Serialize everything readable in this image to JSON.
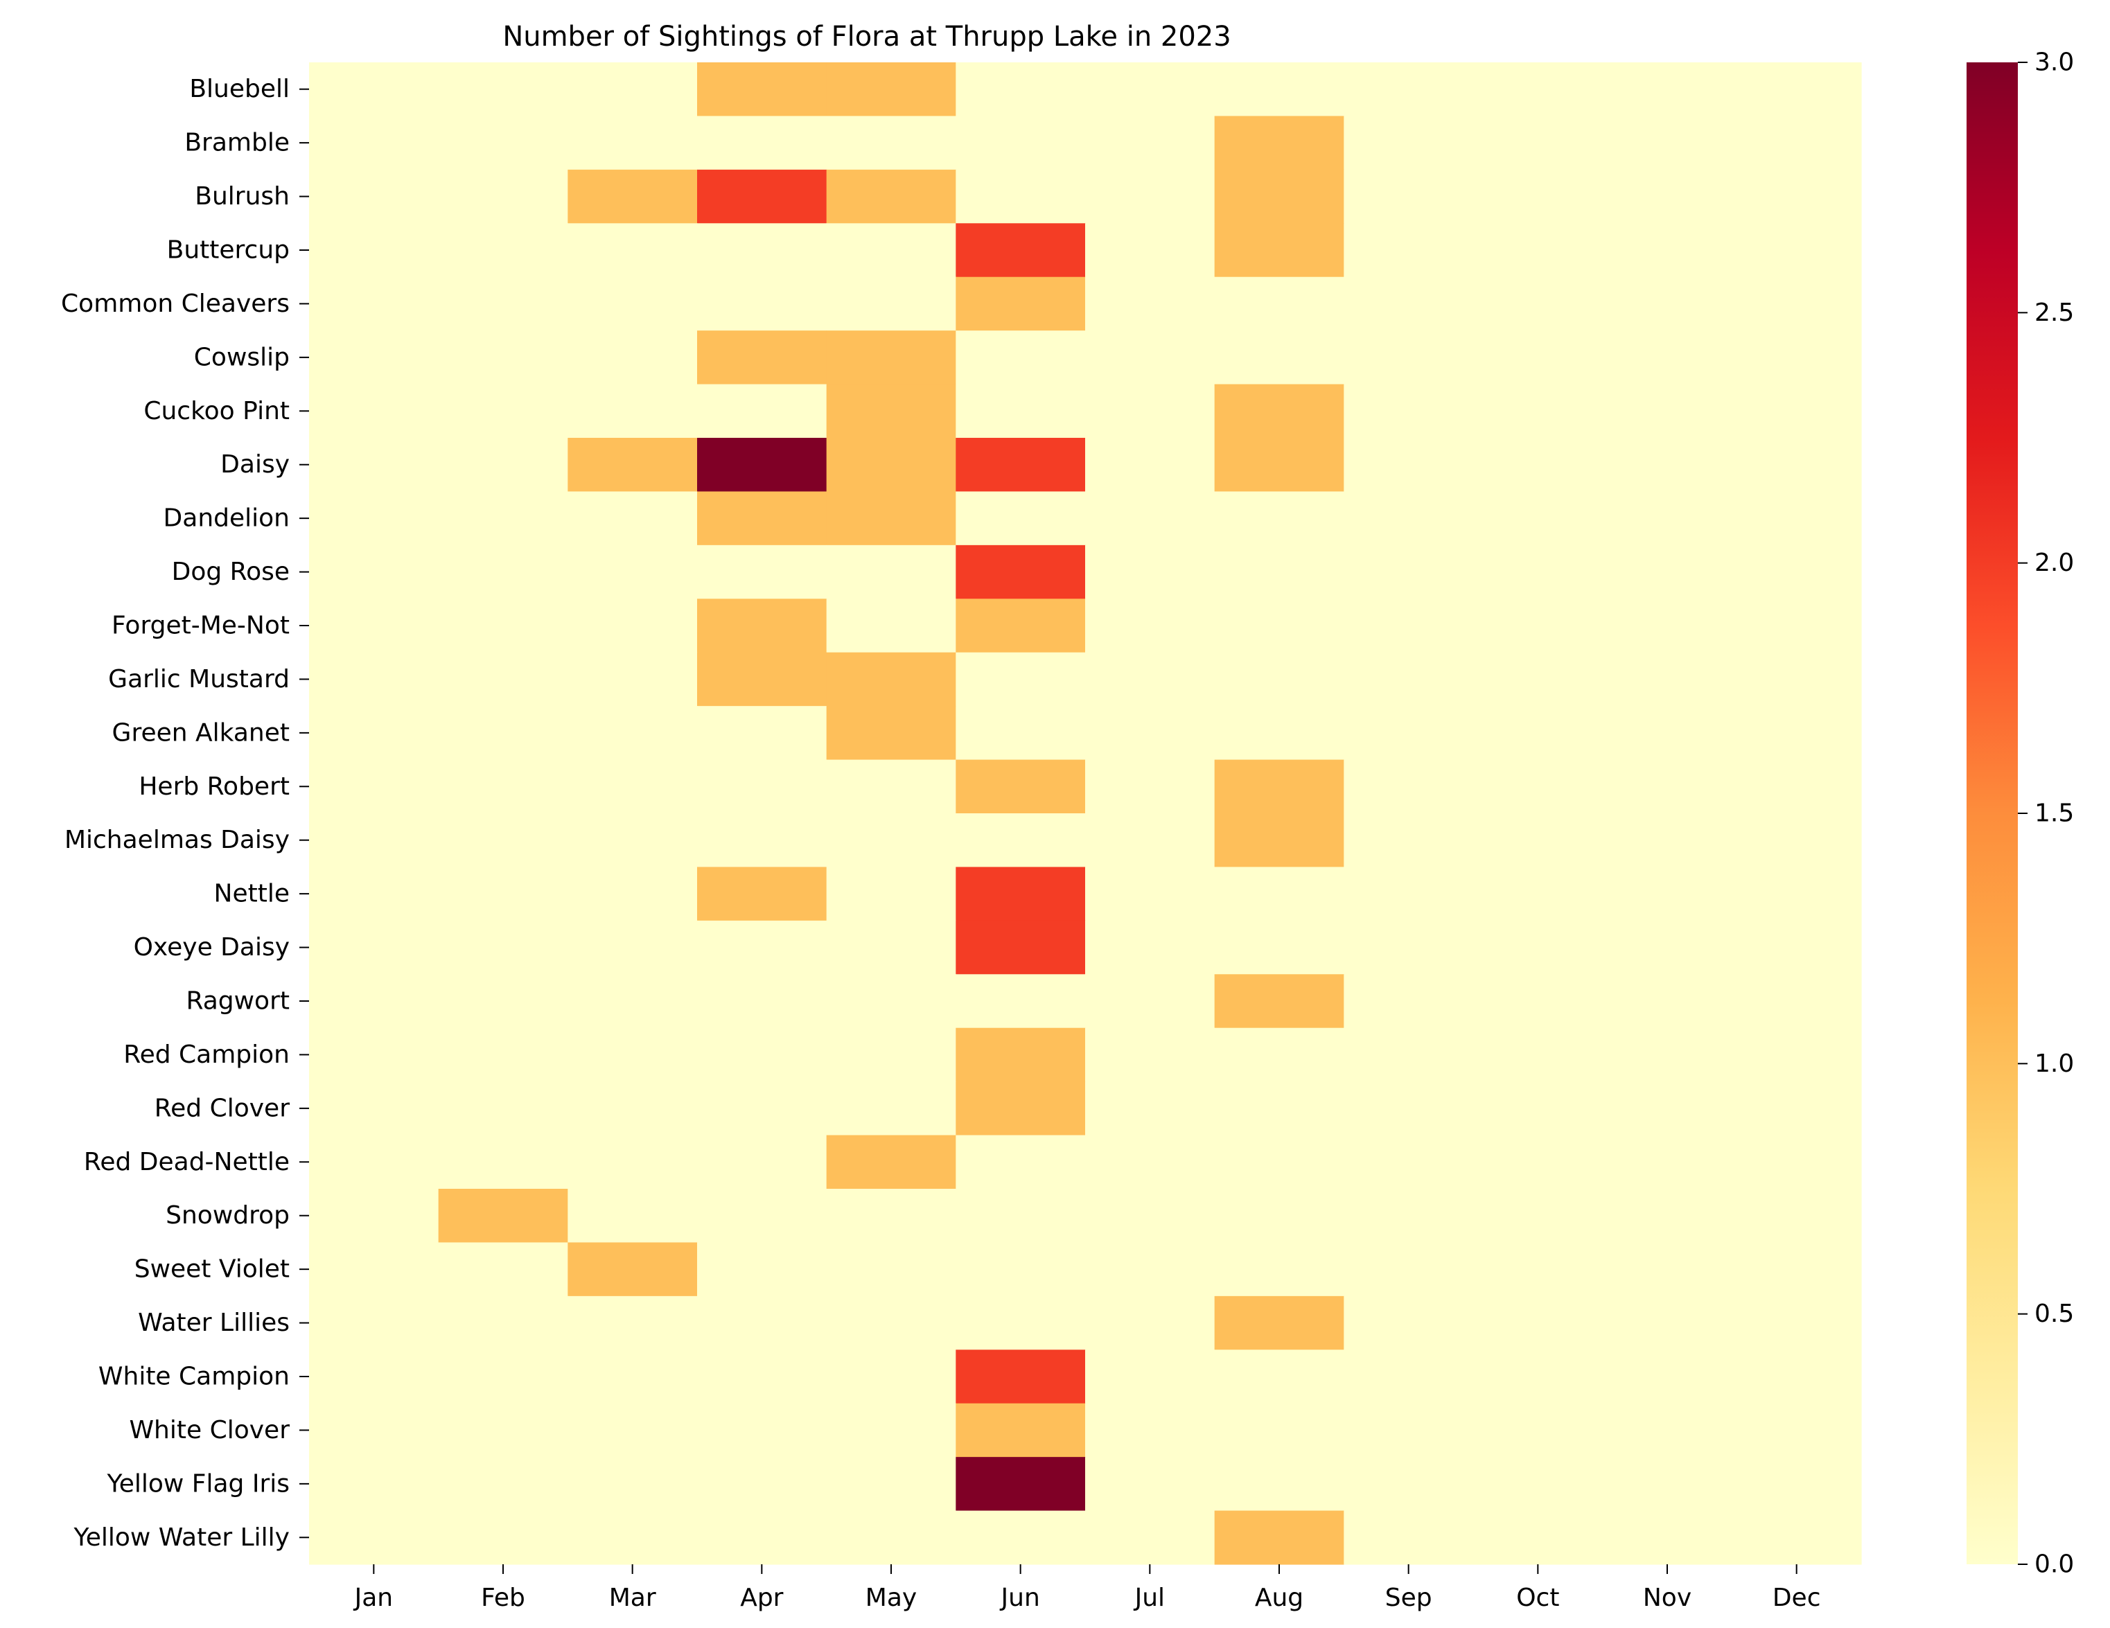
{
  "chart_data": {
    "type": "heatmap",
    "title": "Number of Sightings of Flora at Thrupp Lake in 2023",
    "xlabel": "",
    "ylabel": "",
    "x_categories": [
      "Jan",
      "Feb",
      "Mar",
      "Apr",
      "May",
      "Jun",
      "Jul",
      "Aug",
      "Sep",
      "Oct",
      "Nov",
      "Dec"
    ],
    "y_categories": [
      "Bluebell",
      "Bramble",
      "Bulrush",
      "Buttercup",
      "Common Cleavers",
      "Cowslip",
      "Cuckoo Pint",
      "Daisy",
      "Dandelion",
      "Dog Rose",
      "Forget-Me-Not",
      "Garlic Mustard",
      "Green Alkanet",
      "Herb Robert",
      "Michaelmas Daisy",
      "Nettle",
      "Oxeye Daisy",
      "Ragwort",
      "Red Campion",
      "Red Clover",
      "Red Dead-Nettle",
      "Snowdrop",
      "Sweet Violet",
      "Water Lillies",
      "White Campion",
      "White Clover",
      "Yellow Flag Iris",
      "Yellow Water Lilly"
    ],
    "values": [
      [
        0,
        0,
        0,
        1,
        1,
        0,
        0,
        0,
        0,
        0,
        0,
        0
      ],
      [
        0,
        0,
        0,
        0,
        0,
        0,
        0,
        1,
        0,
        0,
        0,
        0
      ],
      [
        0,
        0,
        1,
        2,
        1,
        0,
        0,
        1,
        0,
        0,
        0,
        0
      ],
      [
        0,
        0,
        0,
        0,
        0,
        2,
        0,
        1,
        0,
        0,
        0,
        0
      ],
      [
        0,
        0,
        0,
        0,
        0,
        1,
        0,
        0,
        0,
        0,
        0,
        0
      ],
      [
        0,
        0,
        0,
        1,
        1,
        0,
        0,
        0,
        0,
        0,
        0,
        0
      ],
      [
        0,
        0,
        0,
        0,
        1,
        0,
        0,
        1,
        0,
        0,
        0,
        0
      ],
      [
        0,
        0,
        1,
        3,
        1,
        2,
        0,
        1,
        0,
        0,
        0,
        0
      ],
      [
        0,
        0,
        0,
        1,
        1,
        0,
        0,
        0,
        0,
        0,
        0,
        0
      ],
      [
        0,
        0,
        0,
        0,
        0,
        2,
        0,
        0,
        0,
        0,
        0,
        0
      ],
      [
        0,
        0,
        0,
        1,
        0,
        1,
        0,
        0,
        0,
        0,
        0,
        0
      ],
      [
        0,
        0,
        0,
        1,
        1,
        0,
        0,
        0,
        0,
        0,
        0,
        0
      ],
      [
        0,
        0,
        0,
        0,
        1,
        0,
        0,
        0,
        0,
        0,
        0,
        0
      ],
      [
        0,
        0,
        0,
        0,
        0,
        1,
        0,
        1,
        0,
        0,
        0,
        0
      ],
      [
        0,
        0,
        0,
        0,
        0,
        0,
        0,
        1,
        0,
        0,
        0,
        0
      ],
      [
        0,
        0,
        0,
        1,
        0,
        2,
        0,
        0,
        0,
        0,
        0,
        0
      ],
      [
        0,
        0,
        0,
        0,
        0,
        2,
        0,
        0,
        0,
        0,
        0,
        0
      ],
      [
        0,
        0,
        0,
        0,
        0,
        0,
        0,
        1,
        0,
        0,
        0,
        0
      ],
      [
        0,
        0,
        0,
        0,
        0,
        1,
        0,
        0,
        0,
        0,
        0,
        0
      ],
      [
        0,
        0,
        0,
        0,
        0,
        1,
        0,
        0,
        0,
        0,
        0,
        0
      ],
      [
        0,
        0,
        0,
        0,
        1,
        0,
        0,
        0,
        0,
        0,
        0,
        0
      ],
      [
        0,
        1,
        0,
        0,
        0,
        0,
        0,
        0,
        0,
        0,
        0,
        0
      ],
      [
        0,
        0,
        1,
        0,
        0,
        0,
        0,
        0,
        0,
        0,
        0,
        0
      ],
      [
        0,
        0,
        0,
        0,
        0,
        0,
        0,
        1,
        0,
        0,
        0,
        0
      ],
      [
        0,
        0,
        0,
        0,
        0,
        2,
        0,
        0,
        0,
        0,
        0,
        0
      ],
      [
        0,
        0,
        0,
        0,
        0,
        1,
        0,
        0,
        0,
        0,
        0,
        0
      ],
      [
        0,
        0,
        0,
        0,
        0,
        3,
        0,
        0,
        0,
        0,
        0,
        0
      ],
      [
        0,
        0,
        0,
        0,
        0,
        0,
        0,
        1,
        0,
        0,
        0,
        0
      ]
    ],
    "colorscale": "YlOrRd",
    "vmin": 0,
    "vmax": 3,
    "colorbar_ticks": [
      "0.0",
      "0.5",
      "1.0",
      "1.5",
      "2.0",
      "2.5",
      "3.0"
    ],
    "colorbar_stops": [
      "#ffffcc",
      "#ffeda0",
      "#fed976",
      "#feb24c",
      "#fd8d3c",
      "#fc4e2a",
      "#e31a1c",
      "#bd0026",
      "#800026"
    ],
    "grid": false,
    "legend": "colorbar-right"
  }
}
